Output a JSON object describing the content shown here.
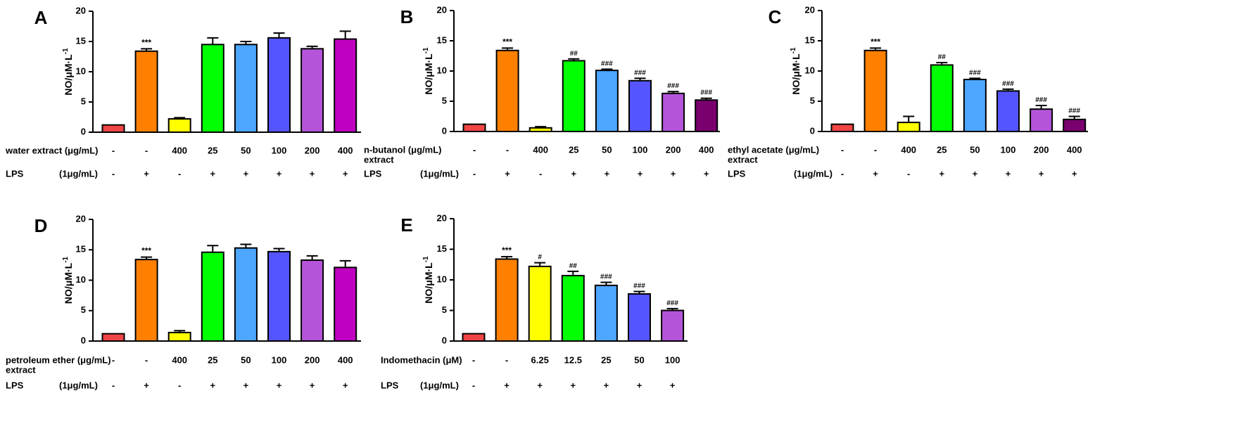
{
  "figure": {
    "ylabel": "NO/μM·L",
    "ylabel_sup": "-1"
  },
  "bar_colors": [
    "#f04545",
    "#ff8000",
    "#ffff00",
    "#00ff00",
    "#4da6ff",
    "#5555ff",
    "#b455d9",
    "#c000c0"
  ],
  "chart_data": [
    {
      "type": "bar",
      "panel": "A",
      "ylabel": "NO/μM·L-1",
      "ylim": [
        0,
        20
      ],
      "yticks": [
        "0",
        "5",
        "10",
        "15",
        "20"
      ],
      "values": [
        1.2,
        13.4,
        2.2,
        14.5,
        14.5,
        15.6,
        13.8,
        15.4
      ],
      "errors": [
        0,
        0.4,
        0.2,
        1.1,
        0.5,
        0.8,
        0.4,
        1.3
      ],
      "colors": [
        "#f04545",
        "#ff8000",
        "#ffff00",
        "#00ff00",
        "#4da6ff",
        "#5555ff",
        "#b455d9",
        "#c000c0"
      ],
      "annotations": [
        "",
        "***",
        "",
        "",
        "",
        "",
        "",
        ""
      ],
      "row1": {
        "label": "water extract (μg/mL)",
        "label2": "",
        "values": [
          "-",
          "-",
          "400",
          "25",
          "50",
          "100",
          "200",
          "400"
        ]
      },
      "row2": {
        "label": "LPS",
        "unit": "(1μg/mL)",
        "values": [
          "-",
          "+",
          "-",
          "+",
          "+",
          "+",
          "+",
          "+"
        ]
      }
    },
    {
      "type": "bar",
      "panel": "B",
      "ylabel": "NO/μM·L-1",
      "ylim": [
        0,
        20
      ],
      "yticks": [
        "0",
        "5",
        "10",
        "15",
        "20"
      ],
      "values": [
        1.2,
        13.4,
        0.6,
        11.7,
        10.1,
        8.4,
        6.3,
        5.2
      ],
      "errors": [
        0,
        0.4,
        0.2,
        0.3,
        0.2,
        0.4,
        0.3,
        0.3
      ],
      "colors": [
        "#f04545",
        "#ff8000",
        "#ffff00",
        "#00ff00",
        "#4da6ff",
        "#5555ff",
        "#b455d9",
        "#7a0070"
      ],
      "annotations": [
        "",
        "***",
        "",
        "##",
        "###",
        "###",
        "###",
        "###"
      ],
      "row1": {
        "label": "n-butanol (μg/mL)",
        "label2": "extract",
        "values": [
          "-",
          "-",
          "400",
          "25",
          "50",
          "100",
          "200",
          "400"
        ]
      },
      "row2": {
        "label": "LPS",
        "unit": "(1μg/mL)",
        "values": [
          "-",
          "+",
          "-",
          "+",
          "+",
          "+",
          "+",
          "+"
        ]
      }
    },
    {
      "type": "bar",
      "panel": "C",
      "ylabel": "NO/μM·L-1",
      "ylim": [
        0,
        20
      ],
      "yticks": [
        "0",
        "5",
        "10",
        "15",
        "20"
      ],
      "values": [
        1.2,
        13.4,
        1.5,
        11.0,
        8.6,
        6.7,
        3.7,
        2.0
      ],
      "errors": [
        0,
        0.4,
        1.0,
        0.4,
        0.2,
        0.3,
        0.6,
        0.5
      ],
      "colors": [
        "#f04545",
        "#ff8000",
        "#ffff00",
        "#00ff00",
        "#4da6ff",
        "#5555ff",
        "#b455d9",
        "#7a0070"
      ],
      "annotations": [
        "",
        "***",
        "",
        "##",
        "###",
        "###",
        "###",
        "###"
      ],
      "row1": {
        "label": "ethyl acetate (μg/mL)",
        "label2": "extract",
        "values": [
          "-",
          "-",
          "400",
          "25",
          "50",
          "100",
          "200",
          "400"
        ]
      },
      "row2": {
        "label": "LPS",
        "unit": "(1μg/mL)",
        "values": [
          "-",
          "+",
          "-",
          "+",
          "+",
          "+",
          "+",
          "+"
        ]
      }
    },
    {
      "type": "bar",
      "panel": "D",
      "ylabel": "NO/μM·L-1",
      "ylim": [
        0,
        20
      ],
      "yticks": [
        "0",
        "5",
        "10",
        "15",
        "20"
      ],
      "values": [
        1.2,
        13.4,
        1.4,
        14.6,
        15.3,
        14.7,
        13.3,
        12.1
      ],
      "errors": [
        0,
        0.4,
        0.3,
        1.1,
        0.6,
        0.5,
        0.7,
        1.1
      ],
      "colors": [
        "#f04545",
        "#ff8000",
        "#ffff00",
        "#00ff00",
        "#4da6ff",
        "#5555ff",
        "#b455d9",
        "#c000c0"
      ],
      "annotations": [
        "",
        "***",
        "",
        "",
        "",
        "",
        "",
        ""
      ],
      "row1": {
        "label": "petroleum ether (μg/mL)",
        "label2": "extract",
        "values": [
          "-",
          "-",
          "400",
          "25",
          "50",
          "100",
          "200",
          "400"
        ]
      },
      "row2": {
        "label": "LPS",
        "unit": "(1μg/mL)",
        "values": [
          "-",
          "+",
          "-",
          "+",
          "+",
          "+",
          "+",
          "+"
        ]
      }
    },
    {
      "type": "bar",
      "panel": "E",
      "ylabel": "NO/μM·L-1",
      "ylim": [
        0,
        20
      ],
      "yticks": [
        "0",
        "5",
        "10",
        "15",
        "20"
      ],
      "values": [
        1.2,
        13.4,
        12.2,
        10.7,
        9.1,
        7.7,
        5.0
      ],
      "errors": [
        0,
        0.4,
        0.6,
        0.7,
        0.5,
        0.4,
        0.3
      ],
      "colors": [
        "#f04545",
        "#ff8000",
        "#ffff00",
        "#00ff00",
        "#4da6ff",
        "#5555ff",
        "#b455d9"
      ],
      "annotations": [
        "",
        "***",
        "#",
        "##",
        "###",
        "###",
        "###"
      ],
      "row1": {
        "label": "Indomethacin (μM)",
        "label2": "",
        "values": [
          "-",
          "-",
          "6.25",
          "12.5",
          "25",
          "50",
          "100"
        ]
      },
      "row2": {
        "label": "LPS",
        "unit": "(1μg/mL)",
        "values": [
          "-",
          "+",
          "+",
          "+",
          "+",
          "+",
          "+"
        ]
      }
    }
  ]
}
